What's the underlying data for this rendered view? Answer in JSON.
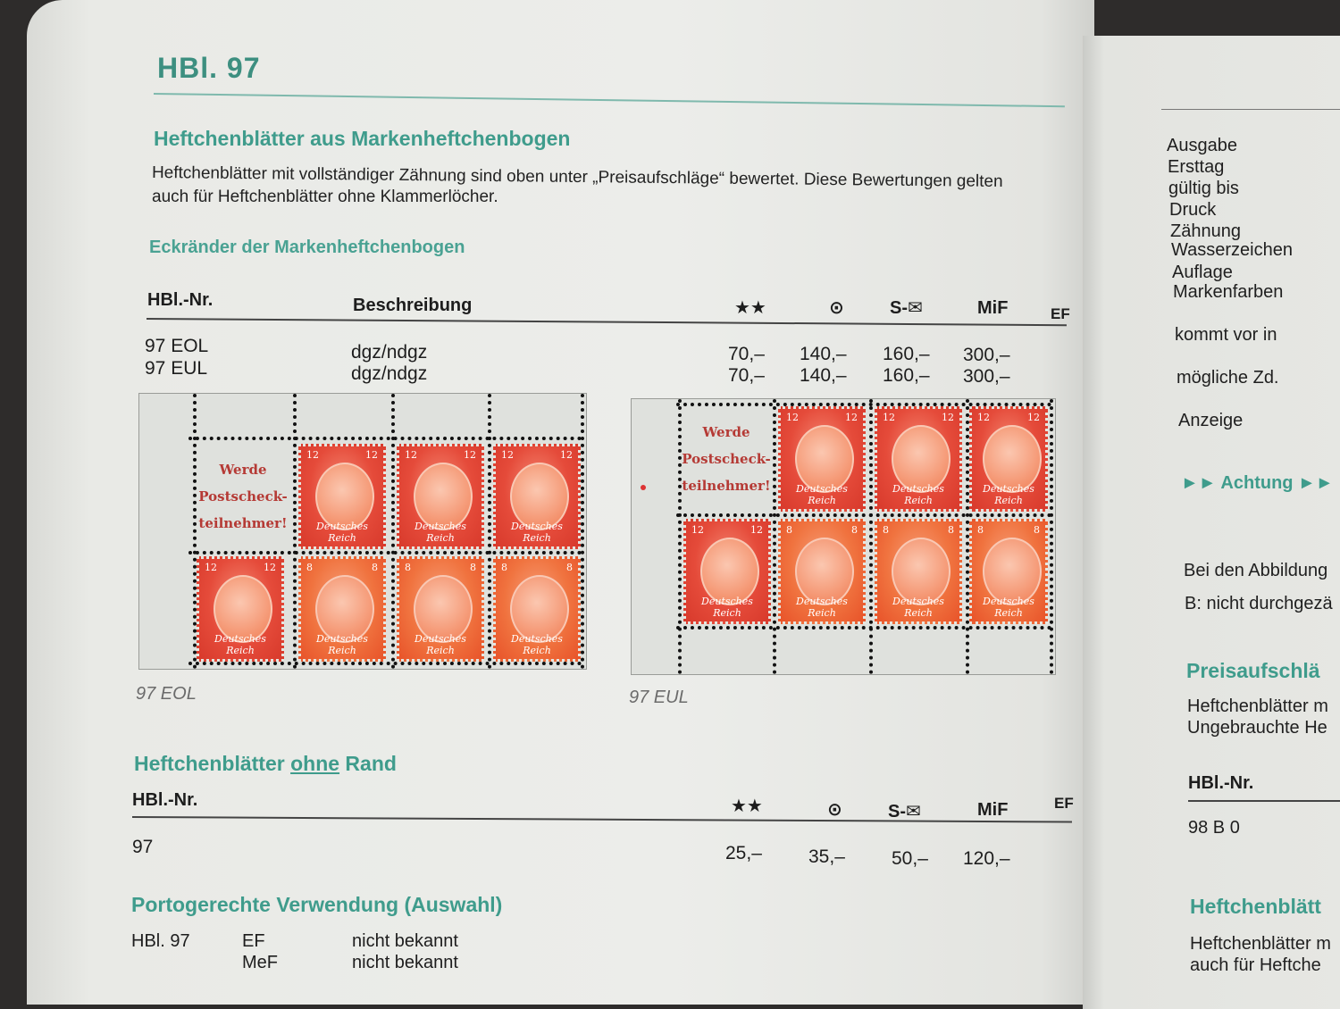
{
  "page_title": "HBl. 97",
  "section1": {
    "heading": "Heftchenblätter aus Markenheftchenbogen",
    "text_line1": "Heftchenblätter mit vollständiger Zähnung sind oben unter „Preisaufschläge“ bewertet. Diese Bewertungen gelten",
    "text_line2": "auch für Heftchenblätter ohne Klammerlöcher.",
    "subheading": "Eckränder der Markenheftchenbogen"
  },
  "table1": {
    "headers": {
      "nr": "HBl.-Nr.",
      "desc": "Beschreibung",
      "mint": "★★",
      "used": "⊙",
      "cover": "S-✉",
      "mif": "MiF",
      "ef": "EF"
    },
    "rows": [
      {
        "nr": "97 EOL",
        "desc": "dgz/ndgz",
        "mint": "70,–",
        "used": "140,–",
        "cover": "160,–",
        "mif": "300,–"
      },
      {
        "nr": "97 EUL",
        "desc": "dgz/ndgz",
        "mint": "70,–",
        "used": "140,–",
        "cover": "160,–",
        "mif": "300,–"
      }
    ]
  },
  "sheets": {
    "left_caption": "97 EOL",
    "right_caption": "97 EUL",
    "ad_lines": [
      "Werde",
      "Postscheck-",
      "teilnehmer!"
    ],
    "stamp_label": "Deutsches Reich",
    "value_12": "12",
    "value_8": "8"
  },
  "section2": {
    "heading_pre": "Heftchenblätter ",
    "heading_underlined": "ohne",
    "heading_post": " Rand",
    "headers": {
      "nr": "HBl.-Nr.",
      "mint": "★★",
      "used": "⊙",
      "cover": "S-✉",
      "mif": "MiF",
      "ef": "EF"
    },
    "row": {
      "nr": "97",
      "mint": "25,–",
      "used": "35,–",
      "cover": "50,–",
      "mif": "120,–"
    }
  },
  "section3": {
    "heading": "Portogerechte Verwendung (Auswahl)",
    "label": "HBl. 97",
    "rows": [
      {
        "type": "EF",
        "value": "nicht bekannt"
      },
      {
        "type": "MeF",
        "value": "nicht bekannt"
      }
    ]
  },
  "right_page": {
    "items": [
      "Ausgabe",
      "Ersttag",
      "gültig bis",
      "Druck",
      "Zähnung",
      "Wasserzeichen",
      "Auflage",
      "Markenfarben"
    ],
    "kommt_vor": "kommt vor in",
    "moegliche": "mögliche Zd.",
    "anzeige": "Anzeige",
    "achtung": "►► Achtung ►►",
    "bei_den": "Bei den Abbildung",
    "b_nicht": "B: nicht durchgezä",
    "preisaufschlaege": "Preisaufschlä",
    "heft_m": "Heftchenblätter m",
    "ungebraucht": "Ungebrauchte He",
    "hbl_nr": "HBl.-Nr.",
    "row_98": "98 B 0",
    "heftchenblaett": "Heftchenblätt",
    "heft_m2": "Heftchenblätter m",
    "auch_fuer": "auch für Heftche"
  }
}
